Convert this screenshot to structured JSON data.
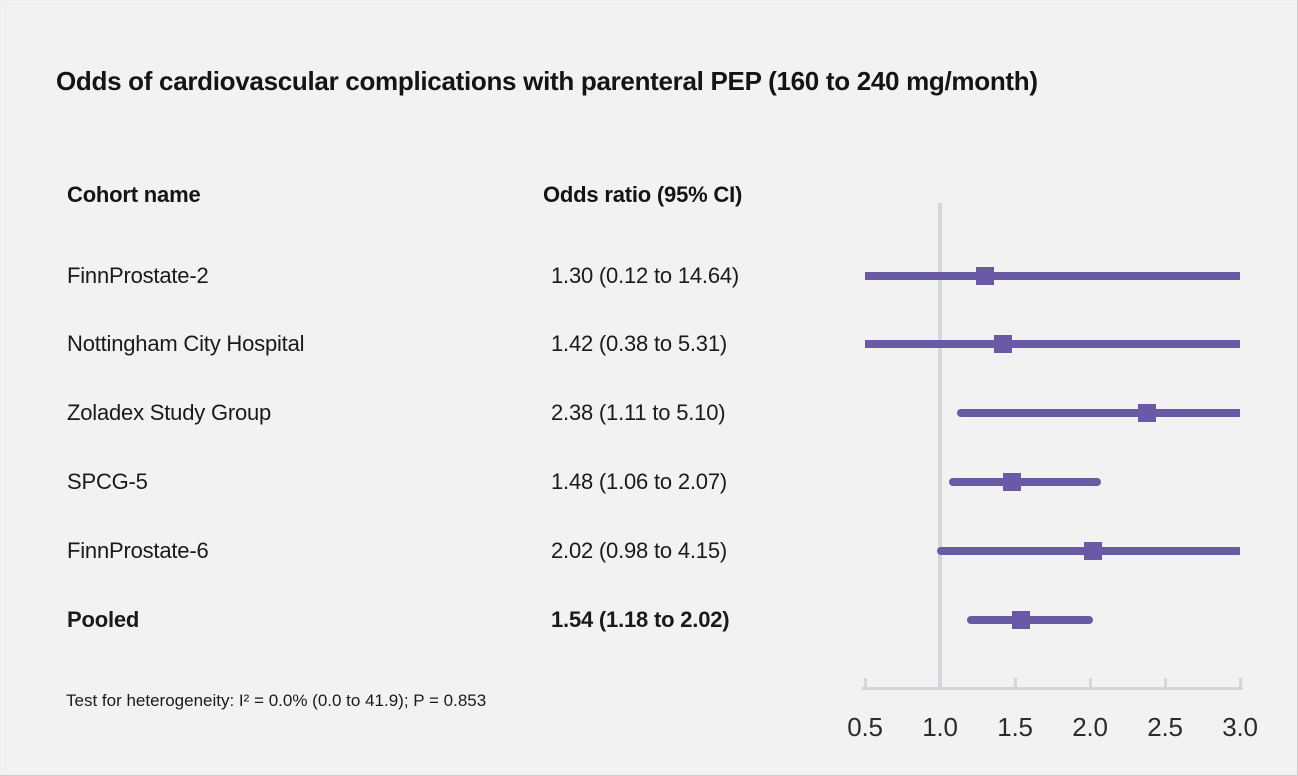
{
  "figure": {
    "title": "Odds of cardiovascular complications with parenteral PEP (160 to 240 mg/month)",
    "footnote": "Test for heterogeneity: I² = 0.0% (0.0 to 41.9); P = 0.853"
  },
  "table": {
    "cohort_header": "Cohort name",
    "or_header": "Odds ratio (95% CI)"
  },
  "colors": {
    "accent_purple": "#6a5aa5",
    "axis_gray": "#d3d6de",
    "background": "#f2f2f2",
    "text": "#1a1a1a"
  },
  "chart_data": {
    "type": "forest",
    "title": "Odds of cardiovascular complications with parenteral PEP (160 to 240 mg/month)",
    "columns": [
      "Cohort name",
      "Odds ratio (95% CI)"
    ],
    "axis": {
      "min": 0.5,
      "max": 3.0,
      "reference_line": 1.0,
      "ticks": [
        0.5,
        1.0,
        1.5,
        2.0,
        2.5,
        3.0
      ],
      "tick_labels": [
        "0.5",
        "1.0",
        "1.5",
        "2.0",
        "2.5",
        "3.0"
      ]
    },
    "rows": [
      {
        "label": "FinnProstate-2",
        "or_text": "1.30 (0.12 to 14.64)",
        "or": 1.3,
        "ci_low": 0.12,
        "ci_high": 14.64,
        "bold": false
      },
      {
        "label": "Nottingham City Hospital",
        "or_text": "1.42 (0.38 to 5.31)",
        "or": 1.42,
        "ci_low": 0.38,
        "ci_high": 5.31,
        "bold": false
      },
      {
        "label": "Zoladex Study Group",
        "or_text": "2.38 (1.11 to 5.10)",
        "or": 2.38,
        "ci_low": 1.11,
        "ci_high": 5.1,
        "bold": false
      },
      {
        "label": "SPCG-5",
        "or_text": "1.48 (1.06 to 2.07)",
        "or": 1.48,
        "ci_low": 1.06,
        "ci_high": 2.07,
        "bold": false
      },
      {
        "label": "FinnProstate-6",
        "or_text": "2.02 (0.98 to 4.15)",
        "or": 2.02,
        "ci_low": 0.98,
        "ci_high": 4.15,
        "bold": false
      },
      {
        "label": "Pooled",
        "or_text": "1.54 (1.18 to 2.02)",
        "or": 1.54,
        "ci_low": 1.18,
        "ci_high": 2.02,
        "bold": true
      }
    ],
    "heterogeneity_text": "Test for heterogeneity: I² = 0.0% (0.0 to 41.9); P = 0.853"
  }
}
